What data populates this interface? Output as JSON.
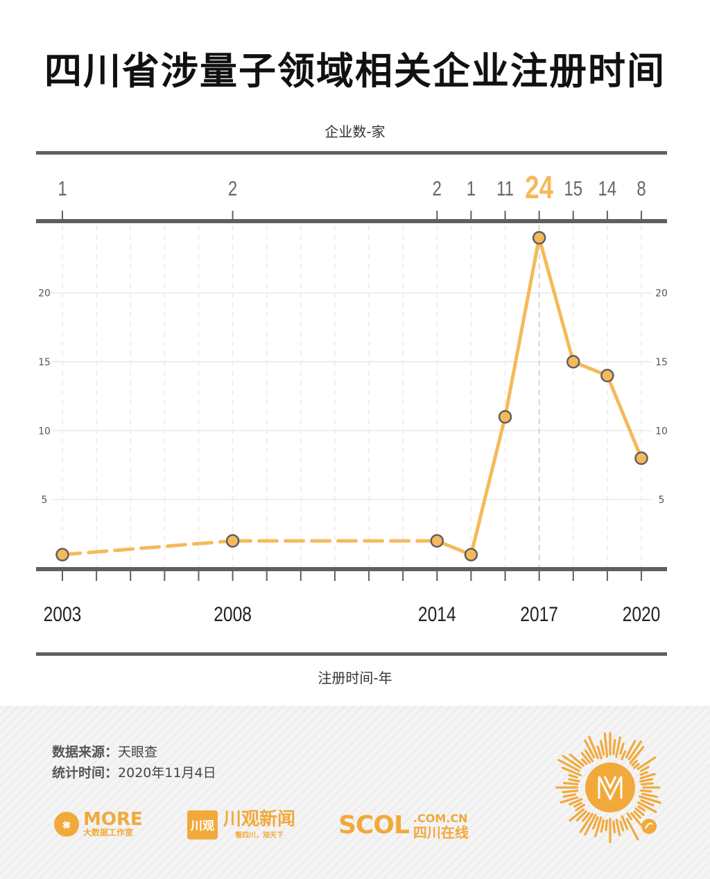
{
  "title": "四川省涉量子领域相关企业注册时间",
  "chart_data": {
    "type": "line",
    "x": [
      2003,
      2008,
      2014,
      2015,
      2016,
      2017,
      2018,
      2019,
      2020
    ],
    "values": [
      1,
      2,
      2,
      1,
      11,
      24,
      15,
      14,
      8
    ],
    "value_labels": [
      "1",
      "2",
      "2",
      "1",
      "11",
      "24",
      "15",
      "14",
      "8"
    ],
    "x_tick_labels": [
      "2003",
      "2008",
      "2014",
      "2017",
      "2020"
    ],
    "x_tick_values": [
      2003,
      2008,
      2014,
      2017,
      2020
    ],
    "y_ticks": [
      5,
      10,
      15,
      20
    ],
    "ylabel": "企业数-家",
    "xlabel": "注册时间-年",
    "xlim": [
      2003,
      2020
    ],
    "ylim": [
      0,
      24
    ],
    "highlight": 2017,
    "dashed_segment_until": 2014,
    "colors": {
      "line": "#f6b95a",
      "highlight": "#f6b95a",
      "axis": "#5f5f63",
      "label": "#666666"
    }
  },
  "footer": {
    "source_label": "数据来源：",
    "source_value": "天眼查",
    "time_label": "统计时间：",
    "time_value": "2020年11月4日",
    "logo_more_main": "MORE",
    "logo_more_sub": "大数据工作室",
    "logo_cg_box": "川观",
    "logo_cg_main": "川观新闻",
    "logo_cg_sub": "看四川，观天下",
    "logo_sc_main": "SCOL",
    "logo_sc_domain": ".COM.CN",
    "logo_sc_cn": "四川在线"
  }
}
